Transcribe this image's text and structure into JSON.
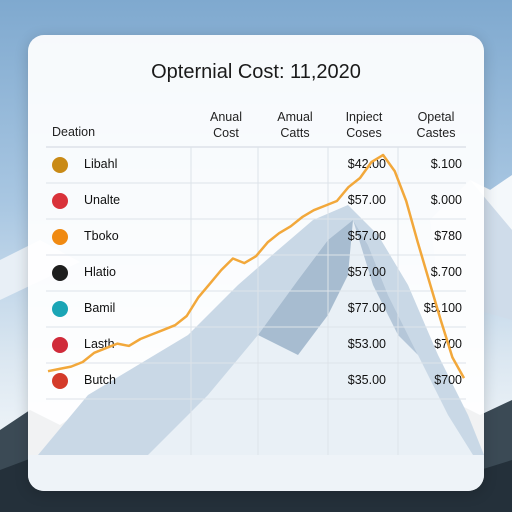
{
  "chart_data": {
    "type": "table",
    "title": "Opternial Cost: 11,2020",
    "columns": [
      "Deation",
      "Anual Cost",
      "Amual Catts",
      "Inpiect Coses",
      "Opetal Castes"
    ],
    "rows": [
      {
        "label": "Libahl",
        "icon_color": "#c98a16",
        "inpiect": "$42.00",
        "opetal": "$.100"
      },
      {
        "label": "Unalte",
        "icon_color": "#d9323a",
        "inpiect": "$57.00",
        "opetal": "$.000"
      },
      {
        "label": "Tboko",
        "icon_color": "#f08a12",
        "inpiect": "$57.00",
        "opetal": "$780"
      },
      {
        "label": "Hlatio",
        "icon_color": "#1e1e1e",
        "inpiect": "$57.00",
        "opetal": "$.700"
      },
      {
        "label": "Bamil",
        "icon_color": "#1aa5b5",
        "inpiect": "$77.00",
        "opetal": "$5.100"
      },
      {
        "label": "Lasth",
        "icon_color": "#d02b3a",
        "inpiect": "$53.00",
        "opetal": "$700"
      },
      {
        "label": "Butch",
        "icon_color": "#d43b2a",
        "inpiect": "$35.00",
        "opetal": "$700"
      }
    ],
    "line_series": {
      "color": "#f2a83b",
      "values": [
        0.06,
        0.07,
        0.08,
        0.1,
        0.14,
        0.16,
        0.18,
        0.17,
        0.2,
        0.22,
        0.24,
        0.26,
        0.3,
        0.38,
        0.44,
        0.5,
        0.55,
        0.53,
        0.56,
        0.62,
        0.66,
        0.69,
        0.73,
        0.76,
        0.78,
        0.8,
        0.86,
        0.9,
        0.97,
        1.0,
        0.93,
        0.8,
        0.62,
        0.45,
        0.28,
        0.12,
        0.03
      ]
    }
  }
}
